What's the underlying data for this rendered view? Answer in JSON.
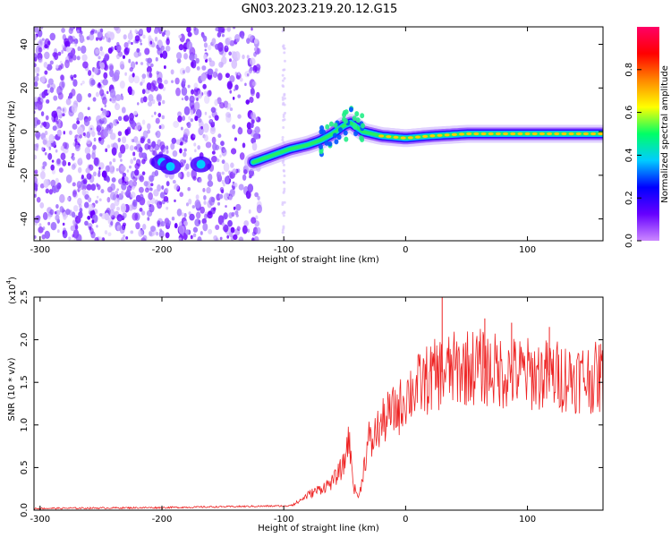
{
  "title": "GN03.2023.219.20.12.G15",
  "chart_data": [
    {
      "type": "heatmap",
      "title": "GN03.2023.219.20.12.G15",
      "xlabel": "Height of straight line (km)",
      "ylabel": "Frequency (Hz)",
      "xlim": [
        -305,
        162
      ],
      "ylim": [
        -50,
        48
      ],
      "xticks": [
        -300,
        -200,
        -100,
        0,
        100
      ],
      "yticks": [
        -40,
        -20,
        0,
        20,
        40
      ],
      "xtick_labels": [
        "-300",
        "-200",
        "-100",
        "0",
        "100"
      ],
      "ytick_labels": [
        "-40",
        "-20",
        "0",
        "20",
        "40"
      ],
      "colorbar": {
        "label": "Normalized spectral amplitude",
        "range": [
          0,
          1
        ],
        "ticks": [
          0.0,
          0.2,
          0.4,
          0.6,
          0.8
        ],
        "tick_labels": [
          "0.0",
          "0.2",
          "0.4",
          "0.6",
          "0.8"
        ],
        "colors": [
          "#cc88ff",
          "#6600ff",
          "#0000ff",
          "#00ccff",
          "#00ff66",
          "#ffff00",
          "#ff8800",
          "#ff0000",
          "#ff0066"
        ]
      },
      "trace": {
        "x": [
          -125,
          -110,
          -95,
          -80,
          -70,
          -60,
          -50,
          -45,
          -40,
          -35,
          -20,
          0,
          20,
          50,
          100,
          160
        ],
        "y": [
          -14,
          -11,
          -8,
          -6,
          -4,
          -1,
          3,
          4,
          2,
          0,
          -2,
          -3,
          -2,
          -1,
          -1,
          -1
        ]
      },
      "blobs": [
        {
          "x": -200,
          "y": -14
        },
        {
          "x": -193,
          "y": -16
        },
        {
          "x": -168,
          "y": -15
        }
      ]
    },
    {
      "type": "line",
      "xlabel": "Height of straight line (km)",
      "ylabel": "SNR (10 * v/v)",
      "y_multiplier": "(x10",
      "y_multiplier_exp": "4",
      "y_multiplier_close": ")",
      "xlim": [
        -305,
        162
      ],
      "ylim": [
        0,
        2.5
      ],
      "xticks": [
        -300,
        -200,
        -100,
        0,
        100
      ],
      "yticks": [
        0.0,
        0.5,
        1.0,
        1.5,
        2.0,
        2.5
      ],
      "xtick_labels": [
        "-300",
        "-200",
        "-100",
        "0",
        "100"
      ],
      "ytick_labels": [
        "0.0",
        "0.5",
        "1.0",
        "1.5",
        "2.0",
        "2.5"
      ],
      "color": "#ee2222",
      "envelope": {
        "x": [
          -305,
          -200,
          -100,
          -90,
          -80,
          -70,
          -60,
          -50,
          -47,
          -45,
          -42,
          -38,
          -35,
          -30,
          -28,
          -25,
          -20,
          -15,
          -10,
          -5,
          0,
          10,
          20,
          30,
          40,
          50,
          60,
          70,
          80,
          100,
          120,
          140,
          162
        ],
        "y": [
          0.01,
          0.02,
          0.04,
          0.08,
          0.18,
          0.25,
          0.33,
          0.55,
          0.9,
          0.6,
          0.25,
          0.15,
          0.45,
          0.85,
          0.75,
          0.9,
          1.0,
          1.1,
          1.15,
          1.2,
          1.35,
          1.45,
          1.55,
          1.62,
          1.65,
          1.68,
          1.68,
          1.65,
          1.62,
          1.6,
          1.58,
          1.56,
          1.55
        ]
      },
      "peaks": [
        {
          "x": 30,
          "y": 2.5
        },
        {
          "x": 65,
          "y": 2.25
        },
        {
          "x": 87,
          "y": 2.2
        },
        {
          "x": 118,
          "y": 2.15
        },
        {
          "x": 160,
          "y": 1.95
        }
      ]
    }
  ]
}
